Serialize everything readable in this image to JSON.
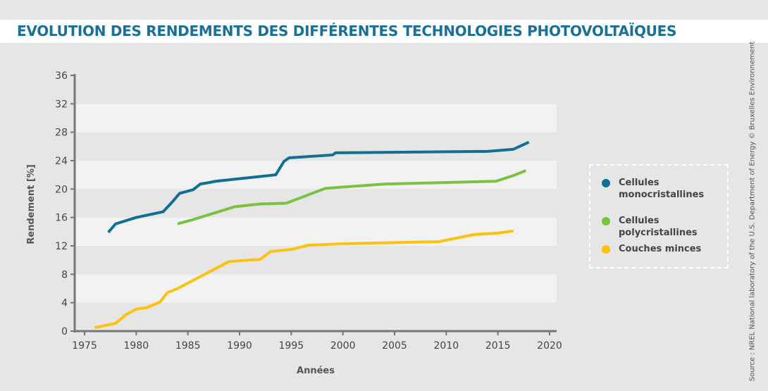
{
  "title": "EVOLUTION DES RENDEMENTS DES DIFFÉRENTES TECHNOLOGIES PHOTOVOLTAÏQUES",
  "source": "Source : NREL National laboratory of the U.S. Department of Energy © Bruxelles Environnement",
  "chart_data": {
    "type": "line",
    "xlabel": "Années",
    "ylabel": "Rendement [%]",
    "xlim": [
      1975,
      2020
    ],
    "ylim": [
      0,
      36
    ],
    "xticks": [
      1975,
      1980,
      1985,
      1990,
      1995,
      2000,
      2005,
      2010,
      2015,
      2020
    ],
    "yticks": [
      0,
      4,
      8,
      12,
      16,
      20,
      24,
      28,
      32,
      36
    ],
    "legend_position": "right",
    "series": [
      {
        "name": "Cellules monocristallines",
        "color": "#126f94",
        "points": [
          [
            1977.3,
            13.9
          ],
          [
            1978,
            15.1
          ],
          [
            1980,
            16.0
          ],
          [
            1982.6,
            16.8
          ],
          [
            1983.5,
            18.2
          ],
          [
            1984.2,
            19.4
          ],
          [
            1985.5,
            19.9
          ],
          [
            1986.2,
            20.7
          ],
          [
            1987,
            20.9
          ],
          [
            1987.7,
            21.1
          ],
          [
            1993.5,
            22.0
          ],
          [
            1994.3,
            23.9
          ],
          [
            1994.8,
            24.4
          ],
          [
            1999,
            24.8
          ],
          [
            1999.3,
            25.1
          ],
          [
            2014,
            25.3
          ],
          [
            2016.5,
            25.6
          ],
          [
            2018,
            26.6
          ]
        ]
      },
      {
        "name": "Cellules polycristallines",
        "color": "#7cc242",
        "points": [
          [
            1984,
            15.1
          ],
          [
            1985.5,
            15.7
          ],
          [
            1989.5,
            17.5
          ],
          [
            1992,
            17.9
          ],
          [
            1994.5,
            18.0
          ],
          [
            1998.3,
            20.1
          ],
          [
            2004,
            20.7
          ],
          [
            2014.8,
            21.1
          ],
          [
            2016.5,
            21.9
          ],
          [
            2017.7,
            22.6
          ]
        ]
      },
      {
        "name": "Couches minces",
        "color": "#fbc210",
        "points": [
          [
            1976,
            0.5
          ],
          [
            1978,
            1.1
          ],
          [
            1979,
            2.3
          ],
          [
            1980,
            3.1
          ],
          [
            1981,
            3.3
          ],
          [
            1982.3,
            4.1
          ],
          [
            1983,
            5.4
          ],
          [
            1984,
            6.0
          ],
          [
            1989,
            9.8
          ],
          [
            1992,
            10.1
          ],
          [
            1993,
            11.2
          ],
          [
            1995,
            11.5
          ],
          [
            1996.7,
            12.1
          ],
          [
            2000,
            12.3
          ],
          [
            2009.3,
            12.6
          ],
          [
            2012.7,
            13.6
          ],
          [
            2015,
            13.8
          ],
          [
            2016.5,
            14.1
          ]
        ]
      }
    ]
  }
}
